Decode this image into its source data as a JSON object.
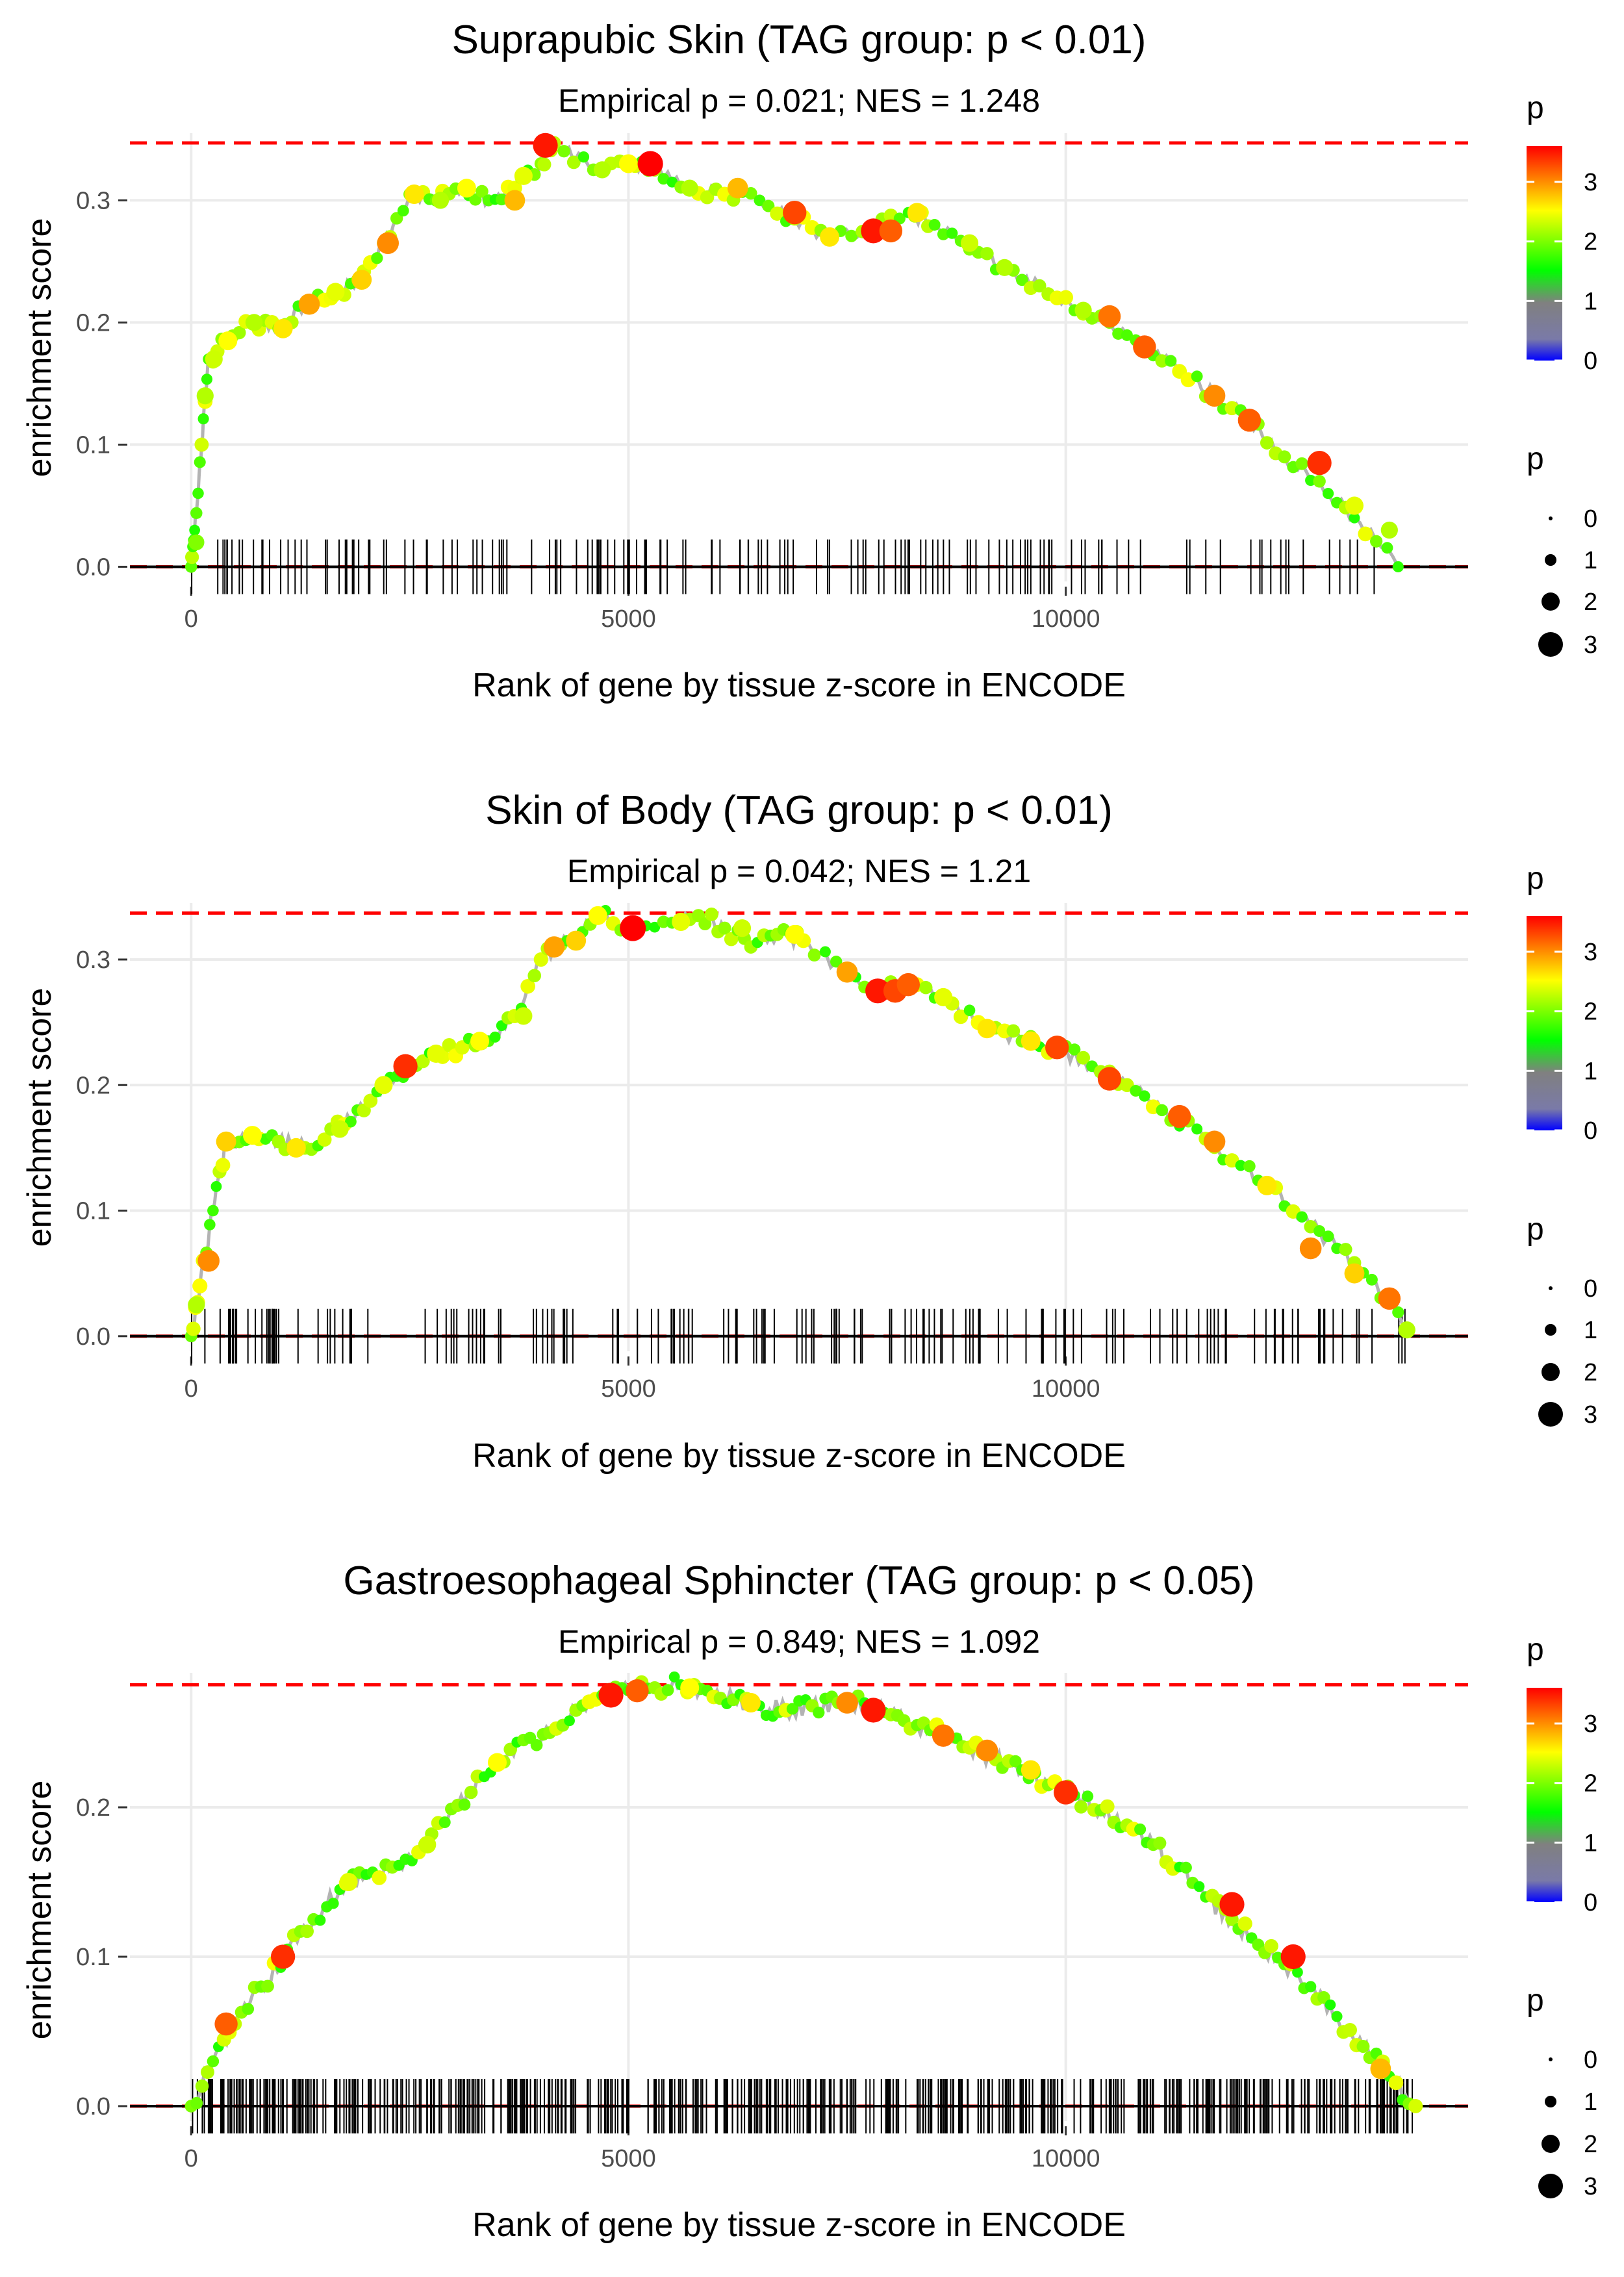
{
  "chart_data": [
    {
      "type": "scatter",
      "title": "Suprapubic Skin (TAG group: p < 0.01)",
      "subtitle": "Empirical p = 0.021; NES = 1.248",
      "xlabel": "Rank of gene by tissue z-score in ENCODE",
      "ylabel": "enrichment score",
      "xlim": [
        -700,
        14600
      ],
      "ylim": [
        -0.012,
        0.355
      ],
      "xticks": [
        0,
        5000,
        10000
      ],
      "xtick_labels": [
        "0",
        "5000",
        "10000"
      ],
      "yticks": [
        0.0,
        0.1,
        0.2,
        0.3
      ],
      "ytick_labels": [
        "0.0",
        "0.1",
        "0.2",
        "0.3"
      ],
      "max_es": 0.347,
      "n_rug": 150,
      "rug_max_rank": 13600,
      "rug_seed": 11,
      "curve": [
        [
          0,
          0
        ],
        [
          40,
          0.03
        ],
        [
          120,
          0.1
        ],
        [
          200,
          0.17
        ],
        [
          400,
          0.185
        ],
        [
          700,
          0.2
        ],
        [
          1000,
          0.195
        ],
        [
          1300,
          0.215
        ],
        [
          1600,
          0.22
        ],
        [
          1900,
          0.235
        ],
        [
          2200,
          0.265
        ],
        [
          2500,
          0.305
        ],
        [
          2800,
          0.3
        ],
        [
          3100,
          0.31
        ],
        [
          3400,
          0.3
        ],
        [
          3700,
          0.31
        ],
        [
          4000,
          0.33
        ],
        [
          4150,
          0.347
        ],
        [
          4600,
          0.325
        ],
        [
          5000,
          0.33
        ],
        [
          5300,
          0.325
        ],
        [
          5700,
          0.31
        ],
        [
          6100,
          0.305
        ],
        [
          6500,
          0.3
        ],
        [
          6900,
          0.285
        ],
        [
          7300,
          0.27
        ],
        [
          7800,
          0.275
        ],
        [
          8200,
          0.29
        ],
        [
          8500,
          0.28
        ],
        [
          8900,
          0.26
        ],
        [
          9300,
          0.245
        ],
        [
          9700,
          0.23
        ],
        [
          10100,
          0.21
        ],
        [
          10500,
          0.2
        ],
        [
          10900,
          0.18
        ],
        [
          11300,
          0.16
        ],
        [
          11700,
          0.14
        ],
        [
          12100,
          0.12
        ],
        [
          12500,
          0.09
        ],
        [
          12900,
          0.07
        ],
        [
          13300,
          0.04
        ],
        [
          13800,
          0.0
        ]
      ],
      "points": [
        [
          60,
          0.02,
          2.0
        ],
        [
          160,
          0.14,
          2.2
        ],
        [
          260,
          0.17,
          2.3
        ],
        [
          420,
          0.185,
          2.5
        ],
        [
          720,
          0.2,
          2.2
        ],
        [
          1050,
          0.195,
          2.6
        ],
        [
          1350,
          0.215,
          2.9
        ],
        [
          1650,
          0.225,
          2.4
        ],
        [
          1950,
          0.235,
          2.7
        ],
        [
          2250,
          0.265,
          3.0
        ],
        [
          2550,
          0.305,
          2.6
        ],
        [
          2850,
          0.3,
          2.2
        ],
        [
          3150,
          0.31,
          2.5
        ],
        [
          3700,
          0.3,
          2.8
        ],
        [
          3800,
          0.32,
          2.4
        ],
        [
          4050,
          0.345,
          3.5
        ],
        [
          4700,
          0.325,
          2.2
        ],
        [
          5000,
          0.33,
          2.5
        ],
        [
          5250,
          0.33,
          3.6
        ],
        [
          5700,
          0.31,
          2.2
        ],
        [
          6250,
          0.31,
          2.8
        ],
        [
          6900,
          0.29,
          3.3
        ],
        [
          7300,
          0.27,
          2.6
        ],
        [
          7800,
          0.275,
          3.5
        ],
        [
          8000,
          0.275,
          3.2
        ],
        [
          8300,
          0.29,
          2.6
        ],
        [
          8900,
          0.265,
          2.3
        ],
        [
          9300,
          0.245,
          2.2
        ],
        [
          10200,
          0.21,
          2.2
        ],
        [
          10500,
          0.205,
          3.1
        ],
        [
          10900,
          0.18,
          3.2
        ],
        [
          11700,
          0.14,
          3.0
        ],
        [
          12100,
          0.12,
          3.2
        ],
        [
          12900,
          0.085,
          3.4
        ],
        [
          13300,
          0.05,
          2.4
        ],
        [
          13700,
          0.03,
          2.2
        ]
      ]
    },
    {
      "type": "scatter",
      "title": "Skin of Body (TAG group: p < 0.01)",
      "subtitle": "Empirical p = 0.042; NES = 1.21",
      "xlabel": "Rank of gene by tissue z-score in ENCODE",
      "ylabel": "enrichment score",
      "xlim": [
        -700,
        14600
      ],
      "ylim": [
        -0.012,
        0.345
      ],
      "xticks": [
        0,
        5000,
        10000
      ],
      "xtick_labels": [
        "0",
        "5000",
        "10000"
      ],
      "yticks": [
        0.0,
        0.1,
        0.2,
        0.3
      ],
      "ytick_labels": [
        "0.0",
        "0.1",
        "0.2",
        "0.3"
      ],
      "max_es": 0.337,
      "n_rug": 170,
      "rug_max_rank": 13900,
      "rug_seed": 23,
      "curve": [
        [
          0,
          0
        ],
        [
          100,
          0.04
        ],
        [
          250,
          0.1
        ],
        [
          400,
          0.155
        ],
        [
          700,
          0.16
        ],
        [
          1000,
          0.155
        ],
        [
          1300,
          0.15
        ],
        [
          1600,
          0.165
        ],
        [
          1900,
          0.18
        ],
        [
          2200,
          0.2
        ],
        [
          2500,
          0.215
        ],
        [
          2800,
          0.225
        ],
        [
          3100,
          0.23
        ],
        [
          3400,
          0.235
        ],
        [
          3700,
          0.255
        ],
        [
          4000,
          0.3
        ],
        [
          4300,
          0.315
        ],
        [
          4650,
          0.337
        ],
        [
          5000,
          0.325
        ],
        [
          5400,
          0.33
        ],
        [
          5800,
          0.335
        ],
        [
          6100,
          0.325
        ],
        [
          6400,
          0.31
        ],
        [
          6700,
          0.32
        ],
        [
          7000,
          0.315
        ],
        [
          7500,
          0.29
        ],
        [
          7900,
          0.275
        ],
        [
          8300,
          0.28
        ],
        [
          8700,
          0.265
        ],
        [
          9100,
          0.245
        ],
        [
          9500,
          0.235
        ],
        [
          9900,
          0.23
        ],
        [
          10300,
          0.215
        ],
        [
          10700,
          0.2
        ],
        [
          11100,
          0.18
        ],
        [
          11500,
          0.165
        ],
        [
          11900,
          0.14
        ],
        [
          12300,
          0.12
        ],
        [
          12700,
          0.095
        ],
        [
          13100,
          0.07
        ],
        [
          13500,
          0.045
        ],
        [
          13900,
          0.005
        ]
      ],
      "points": [
        [
          60,
          0.025,
          2.2
        ],
        [
          200,
          0.06,
          3.0
        ],
        [
          400,
          0.155,
          2.7
        ],
        [
          700,
          0.16,
          2.5
        ],
        [
          1200,
          0.15,
          2.6
        ],
        [
          1700,
          0.165,
          2.3
        ],
        [
          2200,
          0.2,
          2.4
        ],
        [
          2450,
          0.215,
          3.4
        ],
        [
          2800,
          0.225,
          2.4
        ],
        [
          3300,
          0.235,
          2.5
        ],
        [
          3800,
          0.255,
          2.3
        ],
        [
          4150,
          0.31,
          2.9
        ],
        [
          4400,
          0.315,
          2.7
        ],
        [
          4650,
          0.335,
          2.5
        ],
        [
          5050,
          0.325,
          3.7
        ],
        [
          5600,
          0.33,
          2.4
        ],
        [
          6300,
          0.325,
          2.3
        ],
        [
          6900,
          0.32,
          2.5
        ],
        [
          7500,
          0.29,
          2.9
        ],
        [
          7850,
          0.275,
          3.5
        ],
        [
          8050,
          0.275,
          3.3
        ],
        [
          8200,
          0.28,
          3.2
        ],
        [
          8600,
          0.27,
          2.4
        ],
        [
          9100,
          0.245,
          2.6
        ],
        [
          9600,
          0.235,
          2.6
        ],
        [
          9900,
          0.23,
          3.3
        ],
        [
          10500,
          0.205,
          3.3
        ],
        [
          11300,
          0.175,
          3.2
        ],
        [
          11700,
          0.155,
          3.0
        ],
        [
          12300,
          0.12,
          2.6
        ],
        [
          12800,
          0.07,
          3.0
        ],
        [
          13300,
          0.05,
          2.7
        ],
        [
          13700,
          0.03,
          3.1
        ],
        [
          13900,
          0.005,
          2.2
        ]
      ]
    },
    {
      "type": "scatter",
      "title": "Gastroesophageal Sphincter (TAG group: p < 0.05)",
      "subtitle": "Empirical p = 0.849; NES = 1.092",
      "xlabel": "Rank of gene by tissue z-score in ENCODE",
      "ylabel": "enrichment score",
      "xlim": [
        -700,
        14600
      ],
      "ylim": [
        -0.01,
        0.29
      ],
      "xticks": [
        0,
        5000,
        10000
      ],
      "xtick_labels": [
        "0",
        "5000",
        "10000"
      ],
      "yticks": [
        0.0,
        0.1,
        0.2
      ],
      "ytick_labels": [
        "0.0",
        "0.1",
        "0.2"
      ],
      "max_es": 0.282,
      "n_rug": 560,
      "rug_max_rank": 14000,
      "rug_seed": 37,
      "curve": [
        [
          0,
          0
        ],
        [
          250,
          0.03
        ],
        [
          500,
          0.055
        ],
        [
          800,
          0.08
        ],
        [
          1100,
          0.105
        ],
        [
          1400,
          0.125
        ],
        [
          1700,
          0.145
        ],
        [
          2000,
          0.155
        ],
        [
          2300,
          0.16
        ],
        [
          2600,
          0.17
        ],
        [
          2900,
          0.19
        ],
        [
          3200,
          0.21
        ],
        [
          3500,
          0.23
        ],
        [
          3800,
          0.245
        ],
        [
          4100,
          0.25
        ],
        [
          4400,
          0.265
        ],
        [
          4700,
          0.275
        ],
        [
          5000,
          0.278
        ],
        [
          5300,
          0.28
        ],
        [
          5600,
          0.282
        ],
        [
          5900,
          0.278
        ],
        [
          6200,
          0.272
        ],
        [
          6500,
          0.268
        ],
        [
          6800,
          0.265
        ],
        [
          7100,
          0.268
        ],
        [
          7400,
          0.27
        ],
        [
          7700,
          0.27
        ],
        [
          8000,
          0.262
        ],
        [
          8300,
          0.255
        ],
        [
          8600,
          0.248
        ],
        [
          8900,
          0.24
        ],
        [
          9200,
          0.232
        ],
        [
          9500,
          0.225
        ],
        [
          9800,
          0.215
        ],
        [
          10100,
          0.208
        ],
        [
          10400,
          0.198
        ],
        [
          10700,
          0.188
        ],
        [
          11000,
          0.175
        ],
        [
          11300,
          0.16
        ],
        [
          11600,
          0.14
        ],
        [
          11900,
          0.125
        ],
        [
          12200,
          0.108
        ],
        [
          12500,
          0.095
        ],
        [
          12800,
          0.08
        ],
        [
          13100,
          0.06
        ],
        [
          13400,
          0.04
        ],
        [
          13700,
          0.02
        ],
        [
          14000,
          0.0
        ]
      ],
      "points": [
        [
          400,
          0.055,
          3.2
        ],
        [
          1050,
          0.1,
          3.4
        ],
        [
          1800,
          0.15,
          2.4
        ],
        [
          2700,
          0.175,
          2.3
        ],
        [
          3500,
          0.23,
          2.5
        ],
        [
          4800,
          0.275,
          3.5
        ],
        [
          5100,
          0.278,
          3.2
        ],
        [
          5700,
          0.28,
          2.5
        ],
        [
          6400,
          0.27,
          2.6
        ],
        [
          7500,
          0.27,
          3.0
        ],
        [
          7800,
          0.265,
          3.5
        ],
        [
          8600,
          0.248,
          3.1
        ],
        [
          9100,
          0.238,
          3.0
        ],
        [
          9600,
          0.225,
          2.6
        ],
        [
          10000,
          0.21,
          3.4
        ],
        [
          11900,
          0.135,
          3.5
        ],
        [
          12600,
          0.1,
          3.5
        ],
        [
          13600,
          0.025,
          2.8
        ]
      ]
    }
  ],
  "legend": {
    "color_title": "p",
    "color_ticks": [
      "0",
      "1",
      "2",
      "3"
    ],
    "size_title": "p",
    "size_labels": [
      "0",
      "1",
      "2",
      "3"
    ],
    "colors": [
      "#0000ff",
      "#808080",
      "#00ff00",
      "#ffff00",
      "#ff0000"
    ]
  }
}
